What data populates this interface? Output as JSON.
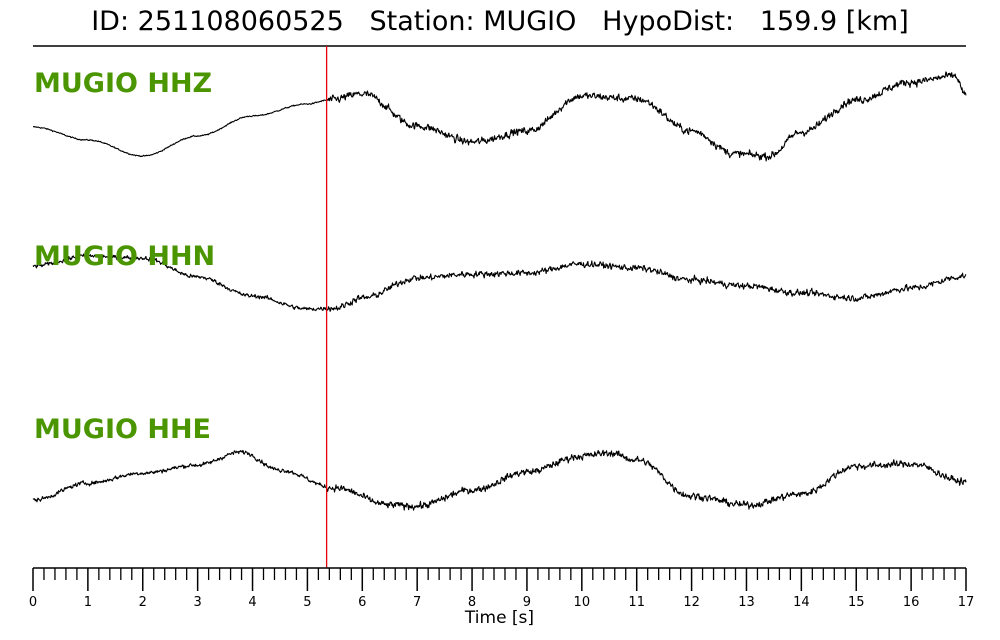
{
  "chart_data": {
    "type": "line",
    "title": "ID: 251108060525   Station: MUGIO   HypoDist:   159.9 [km]",
    "xlabel": "Time [s]",
    "xlim": [
      0,
      17
    ],
    "xticks": [
      "0",
      "1",
      "2",
      "3",
      "4",
      "5",
      "6",
      "7",
      "8",
      "9",
      "10",
      "11",
      "12",
      "13",
      "14",
      "15",
      "16",
      "17"
    ],
    "minor_tick_step": 0.2,
    "pick_time": 5.35,
    "pick_color": "#e8000b",
    "trace_color": "#000000",
    "label_color": "#4a9500",
    "series": [
      {
        "name": "MUGIO HHZ",
        "noise_before_pick": 0.4,
        "noise_after_pick": 2.4,
        "points": [
          [
            0,
            -0.1
          ],
          [
            1,
            -1.4
          ],
          [
            2,
            -3.0
          ],
          [
            3,
            -1.0
          ],
          [
            4,
            1.0
          ],
          [
            5,
            2.2
          ],
          [
            5.4,
            2.6
          ],
          [
            6,
            3.2
          ],
          [
            7,
            0.0
          ],
          [
            8,
            -1.6
          ],
          [
            9,
            -0.5
          ],
          [
            10,
            3.0
          ],
          [
            11,
            2.7
          ],
          [
            12,
            -0.5
          ],
          [
            12.8,
            -2.8
          ],
          [
            13.4,
            -3.0
          ],
          [
            14,
            -0.6
          ],
          [
            15,
            2.6
          ],
          [
            16,
            4.4
          ],
          [
            16.8,
            5.0
          ],
          [
            17,
            3.0
          ]
        ]
      },
      {
        "name": "MUGIO HHN",
        "noise_before_pick": 1.3,
        "noise_after_pick": 2.0,
        "points": [
          [
            0,
            1.2
          ],
          [
            1,
            2.2
          ],
          [
            2,
            2.0
          ],
          [
            3,
            0.1
          ],
          [
            4,
            -1.8
          ],
          [
            5,
            -3.1
          ],
          [
            5.5,
            -3.0
          ],
          [
            6,
            -2.0
          ],
          [
            7,
            0.0
          ],
          [
            8,
            0.4
          ],
          [
            9,
            0.5
          ],
          [
            10,
            1.4
          ],
          [
            11,
            1.0
          ],
          [
            12,
            -0.2
          ],
          [
            13,
            -0.8
          ],
          [
            14,
            -1.5
          ],
          [
            15,
            -2.0
          ],
          [
            16,
            -1.0
          ],
          [
            17,
            0.2
          ]
        ]
      },
      {
        "name": "MUGIO HHE",
        "noise_before_pick": 1.3,
        "noise_after_pick": 2.2,
        "points": [
          [
            0,
            -3.0
          ],
          [
            1,
            -1.3
          ],
          [
            2,
            -0.3
          ],
          [
            3,
            0.5
          ],
          [
            3.8,
            1.8
          ],
          [
            4.5,
            0.0
          ],
          [
            5.5,
            -1.8
          ],
          [
            6.5,
            -3.5
          ],
          [
            7,
            -3.6
          ],
          [
            8,
            -2.0
          ],
          [
            9,
            -0.2
          ],
          [
            10,
            1.4
          ],
          [
            10.5,
            1.7
          ],
          [
            11,
            1.0
          ],
          [
            12,
            -2.6
          ],
          [
            13,
            -3.5
          ],
          [
            14,
            -2.4
          ],
          [
            15,
            0.4
          ],
          [
            16,
            0.6
          ],
          [
            17,
            -1.2
          ]
        ]
      }
    ]
  }
}
